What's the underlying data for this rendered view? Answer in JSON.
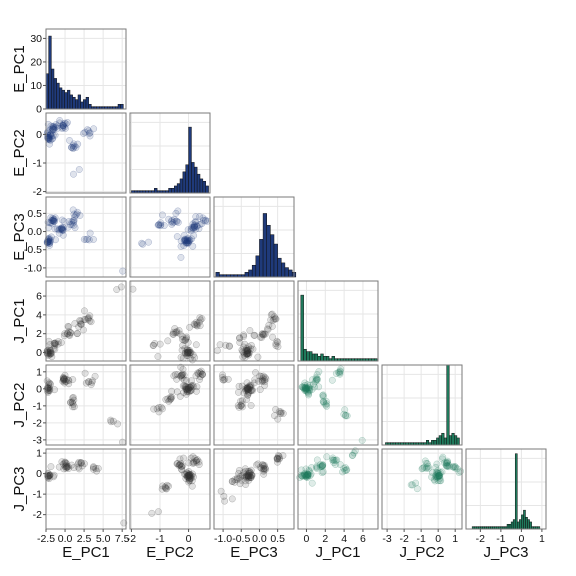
{
  "chart_data": {
    "type": "scatter",
    "subtype": "pairs-matrix-lower-triangle-with-diagonal-histograms",
    "variables": [
      "E_PC1",
      "E_PC2",
      "E_PC3",
      "J_PC1",
      "J_PC2",
      "J_PC3"
    ],
    "grid": true,
    "colors": {
      "e_group": "#1f3a7a",
      "j_group": "#1f7a5c",
      "cross_group": "#333333",
      "panel_border": "#7a7a7a",
      "grid": "#e6e6e6"
    },
    "axes": {
      "E_PC1": {
        "range": [
          -2.5,
          8.0
        ],
        "ticks": [
          -2.5,
          0.0,
          2.5,
          5.0,
          7.5
        ],
        "tick_labels": [
          "-2.5",
          "0.0",
          "2.5",
          "5.0",
          "7.5"
        ]
      },
      "E_PC2": {
        "range": [
          -2.05,
          0.75
        ],
        "ticks": [
          -2,
          -1,
          0
        ],
        "tick_labels": [
          "-2",
          "-1",
          "0"
        ]
      },
      "E_PC3": {
        "range": [
          -1.25,
          0.95
        ],
        "ticks": [
          -1.0,
          -0.5,
          0.0,
          0.5
        ],
        "tick_labels": [
          "-1.0",
          "-0.5",
          "0.0",
          "0.5"
        ]
      },
      "J_PC1": {
        "range": [
          -0.9,
          7.6
        ],
        "ticks": [
          0,
          2,
          4,
          6
        ],
        "tick_labels": [
          "0",
          "2",
          "4",
          "6"
        ]
      },
      "J_PC2": {
        "range": [
          -3.3,
          1.4
        ],
        "ticks": [
          -3,
          -2,
          -1,
          0,
          1
        ],
        "tick_labels": [
          "-3",
          "-2",
          "-1",
          "0",
          "1"
        ]
      },
      "J_PC3": {
        "range": [
          -2.7,
          1.2
        ],
        "ticks": [
          -2,
          -1,
          0,
          1
        ],
        "tick_labels": [
          "-2",
          "-1",
          "0",
          "1"
        ]
      }
    },
    "diag_y_ticks": {
      "values": [
        0,
        10,
        20,
        30
      ],
      "labels": [
        "0",
        "10",
        "20",
        "30"
      ],
      "ymax": 34
    },
    "histograms": {
      "E_PC1": {
        "bin_start": -2.5,
        "bin_width": 0.35,
        "counts": [
          15,
          31,
          17,
          13,
          11,
          9,
          8,
          7,
          8,
          6,
          5,
          4,
          6,
          3,
          4,
          5,
          2,
          1,
          1,
          1,
          1,
          1,
          1,
          1,
          1,
          1,
          1,
          2,
          2
        ]
      },
      "E_PC2": {
        "bin_start": -2.0,
        "bin_width": 0.1,
        "counts": [
          1,
          1,
          1,
          1,
          1,
          1,
          1,
          1,
          2,
          1,
          1,
          1,
          1,
          2,
          2,
          3,
          4,
          6,
          9,
          12,
          28,
          13,
          11,
          8,
          6,
          5,
          3
        ]
      },
      "E_PC3": {
        "bin_start": -1.2,
        "bin_width": 0.1,
        "counts": [
          2,
          1,
          1,
          1,
          1,
          1,
          1,
          1,
          2,
          3,
          5,
          9,
          16,
          27,
          22,
          18,
          14,
          8,
          6,
          4,
          3,
          2
        ]
      },
      "J_PC1": {
        "bin_start": -0.6,
        "bin_width": 0.3,
        "counts": [
          28,
          5,
          4,
          4,
          3,
          3,
          2,
          3,
          2,
          2,
          1,
          2,
          1,
          1,
          1,
          1,
          1,
          1,
          1,
          1,
          1,
          1,
          1,
          1,
          1,
          1,
          1
        ]
      },
      "J_PC2": {
        "bin_start": -3.1,
        "bin_width": 0.15,
        "counts": [
          1,
          1,
          1,
          1,
          1,
          1,
          1,
          1,
          1,
          1,
          1,
          1,
          1,
          1,
          1,
          1,
          2,
          1,
          2,
          2,
          3,
          4,
          5,
          3,
          34,
          4,
          5,
          4,
          3
        ]
      },
      "J_PC3": {
        "bin_start": -2.4,
        "bin_width": 0.1,
        "counts": [
          1,
          1,
          1,
          1,
          1,
          1,
          1,
          1,
          1,
          1,
          1,
          1,
          1,
          1,
          1,
          1,
          1,
          2,
          2,
          3,
          4,
          32,
          3,
          4,
          6,
          8,
          5,
          4,
          3,
          1,
          1,
          1,
          1
        ]
      }
    },
    "clusters": {
      "E_PC1|E_PC2": [
        [
          -2.2,
          -0.1,
          25
        ],
        [
          -1.5,
          0.2,
          20
        ],
        [
          0,
          0.3,
          14
        ],
        [
          1,
          -0.4,
          10
        ],
        [
          1.8,
          -1.3,
          2
        ],
        [
          3,
          0.1,
          8
        ]
      ],
      "E_PC1|E_PC3": [
        [
          -2.2,
          -0.25,
          25
        ],
        [
          -1.6,
          0.3,
          18
        ],
        [
          -0.5,
          0.05,
          16
        ],
        [
          1,
          0.25,
          12
        ],
        [
          1.5,
          0.5,
          6
        ],
        [
          3,
          -0.2,
          6
        ],
        [
          7.5,
          -1.15,
          2
        ]
      ],
      "E_PC2|E_PC3": [
        [
          -0.05,
          -0.25,
          30
        ],
        [
          0.2,
          0.1,
          18
        ],
        [
          -0.5,
          0.3,
          12
        ],
        [
          -1,
          0.2,
          8
        ],
        [
          -1.6,
          -0.3,
          3
        ],
        [
          0.5,
          0.3,
          10
        ]
      ],
      "E_PC1|J_PC1": [
        [
          -2.3,
          0,
          30
        ],
        [
          -1,
          1,
          12
        ],
        [
          0.5,
          2,
          12
        ],
        [
          2,
          3,
          10
        ],
        [
          3,
          3.8,
          8
        ],
        [
          7.5,
          7,
          2
        ]
      ],
      "E_PC2|J_PC1": [
        [
          0,
          0,
          30
        ],
        [
          -0.2,
          1.5,
          10
        ],
        [
          -0.5,
          2,
          8
        ],
        [
          0.3,
          3,
          12
        ],
        [
          -1.2,
          0.8,
          5
        ],
        [
          -1.9,
          6.8,
          1
        ]
      ],
      "E_PC3|J_PC1": [
        [
          -0.35,
          0,
          30
        ],
        [
          0.1,
          2,
          12
        ],
        [
          0.4,
          3.5,
          10
        ],
        [
          -0.5,
          1.5,
          8
        ],
        [
          -0.9,
          0.5,
          5
        ],
        [
          0.5,
          1,
          6
        ]
      ],
      "E_PC1|J_PC2": [
        [
          -2.3,
          0,
          35
        ],
        [
          0,
          0.5,
          18
        ],
        [
          1,
          -0.8,
          10
        ],
        [
          3.5,
          0.5,
          8
        ],
        [
          6,
          -1.8,
          4
        ],
        [
          7.5,
          -3,
          1
        ]
      ],
      "E_PC2|J_PC2": [
        [
          0,
          0,
          35
        ],
        [
          -0.3,
          0.8,
          15
        ],
        [
          -1,
          -1.2,
          6
        ],
        [
          0.4,
          0.9,
          12
        ],
        [
          -0.6,
          -0.5,
          10
        ]
      ],
      "E_PC3|J_PC2": [
        [
          -0.3,
          0,
          35
        ],
        [
          0.1,
          0.6,
          15
        ],
        [
          -0.5,
          -1,
          10
        ],
        [
          0.5,
          -1.5,
          8
        ],
        [
          -1,
          0.5,
          6
        ]
      ],
      "J_PC1|J_PC2": [
        [
          0,
          0,
          30
        ],
        [
          1,
          0.5,
          12
        ],
        [
          2,
          -0.8,
          10
        ],
        [
          3.5,
          1,
          8
        ],
        [
          4,
          -1.5,
          5
        ],
        [
          6,
          -3,
          1
        ]
      ],
      "E_PC1|J_PC3": [
        [
          -2.3,
          -0.1,
          35
        ],
        [
          0,
          0.3,
          18
        ],
        [
          2,
          0.5,
          10
        ],
        [
          4,
          0.2,
          6
        ],
        [
          7.5,
          -2.5,
          1
        ]
      ],
      "E_PC2|J_PC3": [
        [
          0,
          -0.1,
          35
        ],
        [
          -0.3,
          0.4,
          15
        ],
        [
          0.3,
          0.6,
          12
        ],
        [
          -0.8,
          -0.6,
          8
        ],
        [
          -1.2,
          -1.9,
          2
        ]
      ],
      "E_PC3|J_PC3": [
        [
          -0.3,
          -0.1,
          35
        ],
        [
          0.1,
          0.3,
          15
        ],
        [
          0.5,
          0.8,
          10
        ],
        [
          -0.6,
          -0.3,
          10
        ],
        [
          -1,
          -1.2,
          4
        ]
      ],
      "J_PC1|J_PC3": [
        [
          0,
          -0.1,
          30
        ],
        [
          1.5,
          0.4,
          15
        ],
        [
          3,
          0.6,
          10
        ],
        [
          4,
          0.2,
          6
        ],
        [
          5,
          0.9,
          4
        ]
      ],
      "J_PC2|J_PC3": [
        [
          0,
          -0.1,
          30
        ],
        [
          0.5,
          0.5,
          15
        ],
        [
          -0.7,
          0.4,
          10
        ],
        [
          -1.5,
          -0.5,
          4
        ],
        [
          1,
          0.2,
          8
        ]
      ]
    }
  }
}
